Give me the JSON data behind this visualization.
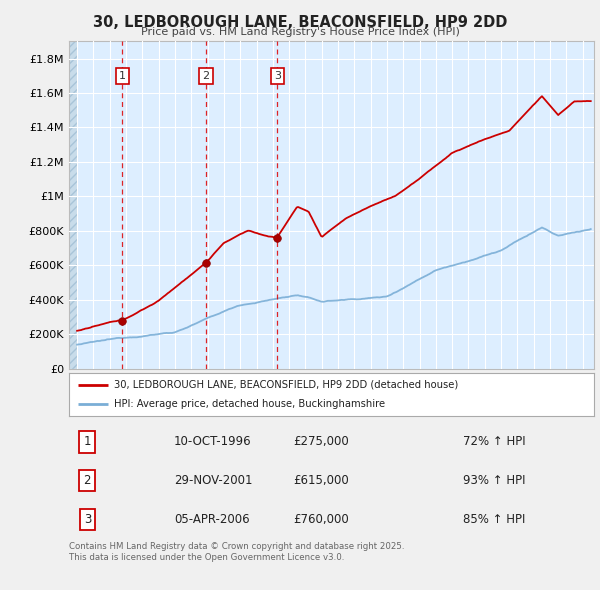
{
  "title": "30, LEDBOROUGH LANE, BEACONSFIELD, HP9 2DD",
  "subtitle": "Price paid vs. HM Land Registry's House Price Index (HPI)",
  "red_label": "30, LEDBOROUGH LANE, BEACONSFIELD, HP9 2DD (detached house)",
  "blue_label": "HPI: Average price, detached house, Buckinghamshire",
  "sale_points": [
    {
      "num": 1,
      "year": 1996.78,
      "price": 275000
    },
    {
      "num": 2,
      "year": 2001.91,
      "price": 615000
    },
    {
      "num": 3,
      "year": 2006.27,
      "price": 760000
    }
  ],
  "ylim": [
    0,
    1900000
  ],
  "xlim_start": 1993.5,
  "xlim_end": 2025.7,
  "red_color": "#cc0000",
  "blue_color": "#7aaed6",
  "fig_bg_color": "#f0f0f0",
  "plot_bg_color": "#ddeeff",
  "grid_color": "#ffffff",
  "vline_color": "#dd0000",
  "legend_border_color": "#aaaaaa",
  "footnote": "Contains HM Land Registry data © Crown copyright and database right 2025.\nThis data is licensed under the Open Government Licence v3.0.",
  "sale_rows": [
    {
      "num": 1,
      "date": "10-OCT-1996",
      "price": "£275,000",
      "pct": "72% ↑ HPI"
    },
    {
      "num": 2,
      "date": "29-NOV-2001",
      "price": "£615,000",
      "pct": "93% ↑ HPI"
    },
    {
      "num": 3,
      "date": "05-APR-2006",
      "price": "£760,000",
      "pct": "85% ↑ HPI"
    }
  ]
}
